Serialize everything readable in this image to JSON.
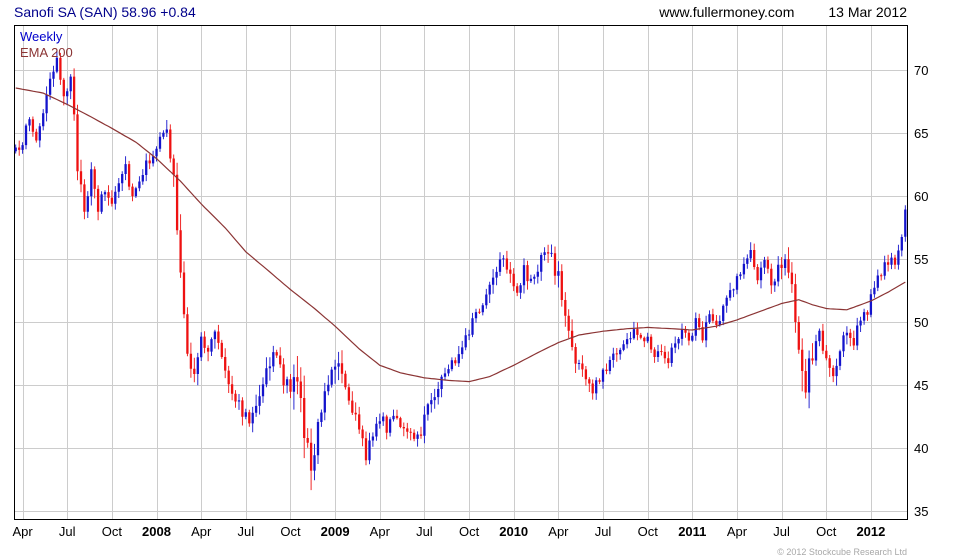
{
  "header": {
    "title": "Sanofi SA (SAN) 58.96 +0.84",
    "website": "www.fullermoney.com",
    "date": "13 Mar 2012"
  },
  "legend": {
    "series": "Weekly",
    "overlay": "EMA 200"
  },
  "footer": {
    "copyright": "© 2012 Stockcube Research Ltd"
  },
  "chart_data": {
    "type": "candlestick",
    "title": "Sanofi SA (SAN)",
    "interval": "Weekly",
    "overlay": "EMA 200",
    "last_price": 58.96,
    "change": 0.84,
    "date": "13 Mar 2012",
    "ylim": [
      34.4,
      73.6
    ],
    "y_ticks": [
      35,
      40,
      45,
      50,
      55,
      60,
      65,
      70
    ],
    "weeks_total": 260,
    "x_ticks": [
      {
        "week": 2,
        "label": "Apr",
        "bold": false
      },
      {
        "week": 15,
        "label": "Jul",
        "bold": false
      },
      {
        "week": 28,
        "label": "Oct",
        "bold": false
      },
      {
        "week": 41,
        "label": "2008",
        "bold": true
      },
      {
        "week": 54,
        "label": "Apr",
        "bold": false
      },
      {
        "week": 67,
        "label": "Jul",
        "bold": false
      },
      {
        "week": 80,
        "label": "Oct",
        "bold": false
      },
      {
        "week": 93,
        "label": "2009",
        "bold": true
      },
      {
        "week": 106,
        "label": "Apr",
        "bold": false
      },
      {
        "week": 119,
        "label": "Jul",
        "bold": false
      },
      {
        "week": 132,
        "label": "Oct",
        "bold": false
      },
      {
        "week": 145,
        "label": "2010",
        "bold": true
      },
      {
        "week": 158,
        "label": "Apr",
        "bold": false
      },
      {
        "week": 171,
        "label": "Jul",
        "bold": false
      },
      {
        "week": 184,
        "label": "Oct",
        "bold": false
      },
      {
        "week": 197,
        "label": "2011",
        "bold": true
      },
      {
        "week": 210,
        "label": "Apr",
        "bold": false
      },
      {
        "week": 223,
        "label": "Jul",
        "bold": false
      },
      {
        "week": 236,
        "label": "Oct",
        "bold": false
      },
      {
        "week": 249,
        "label": "2012",
        "bold": true
      }
    ],
    "close_anchors": [
      [
        0,
        63.5
      ],
      [
        2,
        64.5
      ],
      [
        4,
        66.0
      ],
      [
        6,
        64.5
      ],
      [
        9,
        68.0
      ],
      [
        12,
        70.5
      ],
      [
        14,
        68.5
      ],
      [
        16,
        69.0
      ],
      [
        18,
        62.5
      ],
      [
        20,
        59.5
      ],
      [
        22,
        61.5
      ],
      [
        24,
        59.0
      ],
      [
        26,
        60.5
      ],
      [
        28,
        59.5
      ],
      [
        30,
        61.5
      ],
      [
        32,
        62.5
      ],
      [
        34,
        60.0
      ],
      [
        36,
        61.5
      ],
      [
        38,
        62.5
      ],
      [
        40,
        63.5
      ],
      [
        42,
        64.5
      ],
      [
        44,
        65.0
      ],
      [
        46,
        61.5
      ],
      [
        48,
        53.5
      ],
      [
        50,
        47.0
      ],
      [
        52,
        46.5
      ],
      [
        54,
        48.5
      ],
      [
        56,
        47.5
      ],
      [
        58,
        49.5
      ],
      [
        60,
        47.5
      ],
      [
        62,
        45.5
      ],
      [
        64,
        44.0
      ],
      [
        66,
        43.0
      ],
      [
        68,
        42.0
      ],
      [
        70,
        44.0
      ],
      [
        72,
        45.5
      ],
      [
        74,
        46.5
      ],
      [
        76,
        47.5
      ],
      [
        78,
        45.5
      ],
      [
        80,
        44.0
      ],
      [
        82,
        46.5
      ],
      [
        84,
        40.5
      ],
      [
        86,
        38.5
      ],
      [
        88,
        42.5
      ],
      [
        90,
        44.5
      ],
      [
        92,
        46.5
      ],
      [
        94,
        47.5
      ],
      [
        96,
        45.0
      ],
      [
        98,
        43.5
      ],
      [
        100,
        41.0
      ],
      [
        102,
        39.5
      ],
      [
        104,
        41.5
      ],
      [
        106,
        42.5
      ],
      [
        108,
        41.5
      ],
      [
        110,
        43.0
      ],
      [
        112,
        42.0
      ],
      [
        114,
        41.0
      ],
      [
        116,
        40.5
      ],
      [
        118,
        41.5
      ],
      [
        120,
        43.5
      ],
      [
        122,
        44.5
      ],
      [
        124,
        45.5
      ],
      [
        126,
        46.5
      ],
      [
        128,
        47.0
      ],
      [
        130,
        48.5
      ],
      [
        132,
        49.5
      ],
      [
        134,
        50.5
      ],
      [
        136,
        51.5
      ],
      [
        138,
        53.0
      ],
      [
        140,
        54.5
      ],
      [
        142,
        55.5
      ],
      [
        144,
        54.0
      ],
      [
        146,
        52.5
      ],
      [
        148,
        54.0
      ],
      [
        150,
        53.0
      ],
      [
        152,
        54.5
      ],
      [
        154,
        55.5
      ],
      [
        156,
        55.0
      ],
      [
        158,
        53.5
      ],
      [
        160,
        50.5
      ],
      [
        162,
        48.0
      ],
      [
        164,
        46.5
      ],
      [
        166,
        45.5
      ],
      [
        168,
        44.5
      ],
      [
        170,
        45.5
      ],
      [
        172,
        46.5
      ],
      [
        174,
        47.5
      ],
      [
        176,
        48.0
      ],
      [
        178,
        48.5
      ],
      [
        180,
        49.5
      ],
      [
        182,
        48.5
      ],
      [
        184,
        49.0
      ],
      [
        186,
        47.5
      ],
      [
        188,
        48.0
      ],
      [
        190,
        47.0
      ],
      [
        192,
        48.5
      ],
      [
        194,
        49.5
      ],
      [
        196,
        48.5
      ],
      [
        198,
        50.0
      ],
      [
        200,
        49.0
      ],
      [
        202,
        50.5
      ],
      [
        204,
        49.5
      ],
      [
        206,
        51.0
      ],
      [
        208,
        52.5
      ],
      [
        210,
        53.5
      ],
      [
        212,
        54.5
      ],
      [
        214,
        55.5
      ],
      [
        216,
        53.5
      ],
      [
        218,
        54.5
      ],
      [
        220,
        53.0
      ],
      [
        222,
        54.5
      ],
      [
        224,
        55.5
      ],
      [
        226,
        52.5
      ],
      [
        228,
        46.5
      ],
      [
        230,
        45.0
      ],
      [
        232,
        47.5
      ],
      [
        234,
        49.0
      ],
      [
        236,
        47.0
      ],
      [
        238,
        45.5
      ],
      [
        240,
        47.5
      ],
      [
        242,
        49.5
      ],
      [
        244,
        48.5
      ],
      [
        246,
        50.5
      ],
      [
        248,
        51.0
      ],
      [
        250,
        52.5
      ],
      [
        252,
        54.0
      ],
      [
        254,
        55.0
      ],
      [
        256,
        54.5
      ],
      [
        258,
        56.5
      ],
      [
        259,
        57.8
      ]
    ],
    "ema_anchors": [
      [
        0,
        68.6
      ],
      [
        8,
        68.2
      ],
      [
        15,
        67.3
      ],
      [
        22,
        66.3
      ],
      [
        28,
        65.4
      ],
      [
        35,
        64.3
      ],
      [
        41,
        63.0
      ],
      [
        48,
        61.2
      ],
      [
        54,
        59.4
      ],
      [
        61,
        57.5
      ],
      [
        67,
        55.6
      ],
      [
        74,
        54.0
      ],
      [
        80,
        52.6
      ],
      [
        87,
        51.1
      ],
      [
        93,
        49.7
      ],
      [
        100,
        47.9
      ],
      [
        106,
        46.6
      ],
      [
        112,
        46.0
      ],
      [
        119,
        45.6
      ],
      [
        126,
        45.4
      ],
      [
        132,
        45.3
      ],
      [
        138,
        45.7
      ],
      [
        145,
        46.6
      ],
      [
        152,
        47.6
      ],
      [
        158,
        48.4
      ],
      [
        164,
        49.0
      ],
      [
        171,
        49.3
      ],
      [
        178,
        49.5
      ],
      [
        184,
        49.6
      ],
      [
        191,
        49.5
      ],
      [
        197,
        49.4
      ],
      [
        204,
        49.7
      ],
      [
        210,
        50.2
      ],
      [
        217,
        50.9
      ],
      [
        223,
        51.5
      ],
      [
        228,
        51.8
      ],
      [
        232,
        51.4
      ],
      [
        236,
        51.1
      ],
      [
        242,
        51.0
      ],
      [
        249,
        51.7
      ],
      [
        254,
        52.4
      ],
      [
        259,
        53.2
      ]
    ],
    "volatility_anchors": [
      [
        0,
        0.7
      ],
      [
        12,
        0.9
      ],
      [
        18,
        1.4
      ],
      [
        26,
        0.9
      ],
      [
        42,
        0.7
      ],
      [
        48,
        1.7
      ],
      [
        54,
        1.0
      ],
      [
        66,
        0.9
      ],
      [
        80,
        1.8
      ],
      [
        84,
        2.4
      ],
      [
        90,
        1.5
      ],
      [
        100,
        1.2
      ],
      [
        110,
        0.8
      ],
      [
        122,
        0.9
      ],
      [
        136,
        0.8
      ],
      [
        142,
        1.0
      ],
      [
        154,
        0.9
      ],
      [
        160,
        1.3
      ],
      [
        168,
        0.9
      ],
      [
        182,
        0.7
      ],
      [
        198,
        0.7
      ],
      [
        210,
        0.8
      ],
      [
        220,
        0.9
      ],
      [
        226,
        1.4
      ],
      [
        228,
        2.3
      ],
      [
        234,
        1.2
      ],
      [
        242,
        0.9
      ],
      [
        252,
        0.8
      ],
      [
        259,
        0.6
      ]
    ],
    "last_candle": {
      "open": 56.8,
      "high": 59.3,
      "low": 56.4,
      "close": 58.96
    },
    "colors": {
      "up": "#1313cc",
      "down": "#ee1111",
      "ema": "#8b3434",
      "grid": "#cccccc",
      "frame": "#000000",
      "title": "#00008b",
      "legend_weekly": "#0000cc",
      "copyright": "#a8a8a8"
    }
  }
}
